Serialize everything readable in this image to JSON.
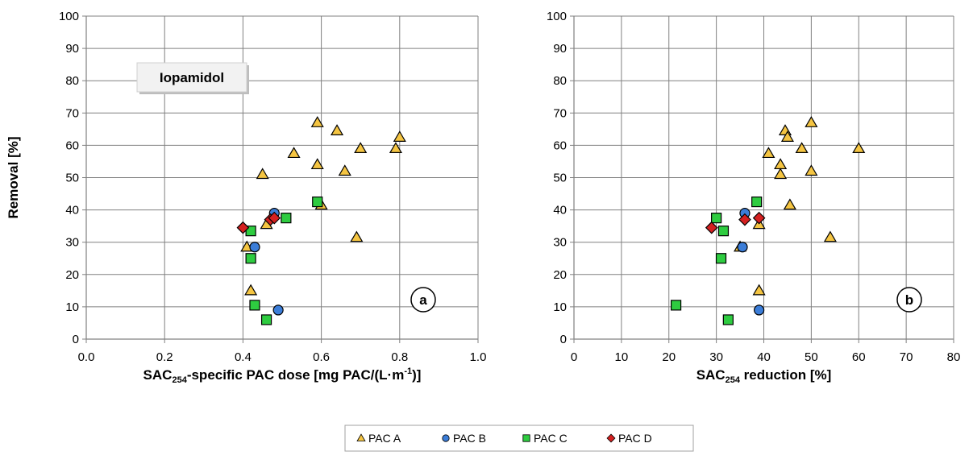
{
  "chart_data": [
    {
      "type": "scatter",
      "panel_label": "a",
      "annotation": "Iopamidol",
      "ylabel": "Removal [%]",
      "xlabel_parts": [
        "SAC",
        "254",
        "-specific PAC dose [mg PAC/(L·m",
        "-1",
        ")]"
      ],
      "xlim": [
        0,
        1.0
      ],
      "ylim": [
        0,
        100
      ],
      "xticks": [
        "0.0",
        "0.2",
        "0.4",
        "0.6",
        "0.8",
        "1.0"
      ],
      "xtick_values": [
        0,
        0.2,
        0.4,
        0.6,
        0.8,
        1.0
      ],
      "yticks": [
        "0",
        "10",
        "20",
        "30",
        "40",
        "50",
        "60",
        "70",
        "80",
        "90",
        "100"
      ],
      "ytick_values": [
        0,
        10,
        20,
        30,
        40,
        50,
        60,
        70,
        80,
        90,
        100
      ],
      "grid": true,
      "series": [
        {
          "name": "PAC A",
          "x": [
            0.59,
            0.64,
            0.7,
            0.79,
            0.8,
            0.53,
            0.59,
            0.66,
            0.45,
            0.6,
            0.46,
            0.41,
            0.69,
            0.42
          ],
          "y": [
            67,
            64.5,
            59,
            59,
            62.5,
            57.5,
            54,
            52,
            51,
            41.5,
            35.5,
            28.5,
            31.5,
            15
          ]
        },
        {
          "name": "PAC B",
          "x": [
            0.48,
            0.43,
            0.49
          ],
          "y": [
            39,
            28.5,
            9
          ]
        },
        {
          "name": "PAC C",
          "x": [
            0.59,
            0.51,
            0.42,
            0.42,
            0.43,
            0.46
          ],
          "y": [
            42.5,
            37.5,
            33.5,
            25,
            10.5,
            6
          ]
        },
        {
          "name": "PAC D",
          "x": [
            0.4,
            0.47,
            0.48
          ],
          "y": [
            34.5,
            37,
            37.5
          ]
        }
      ]
    },
    {
      "type": "scatter",
      "panel_label": "b",
      "ylabel": "",
      "xlabel_parts": [
        "SAC",
        "254",
        " reduction [%]"
      ],
      "xlim": [
        0,
        80
      ],
      "ylim": [
        0,
        100
      ],
      "xticks": [
        "0",
        "10",
        "20",
        "30",
        "40",
        "50",
        "60",
        "70",
        "80"
      ],
      "xtick_values": [
        0,
        10,
        20,
        30,
        40,
        50,
        60,
        70,
        80
      ],
      "yticks": [
        "0",
        "10",
        "20",
        "30",
        "40",
        "50",
        "60",
        "70",
        "80",
        "90",
        "100"
      ],
      "ytick_values": [
        0,
        10,
        20,
        30,
        40,
        50,
        60,
        70,
        80,
        90,
        100
      ],
      "grid": true,
      "series": [
        {
          "name": "PAC A",
          "x": [
            50,
            44.5,
            45,
            41,
            48,
            60,
            43.5,
            43.5,
            50,
            45.5,
            39,
            35,
            54,
            39
          ],
          "y": [
            67,
            64.5,
            62.5,
            57.5,
            59,
            59,
            54,
            51,
            52,
            41.5,
            35.5,
            28.5,
            31.5,
            15
          ]
        },
        {
          "name": "PAC B",
          "x": [
            36,
            35.5,
            39
          ],
          "y": [
            39,
            28.5,
            9
          ]
        },
        {
          "name": "PAC C",
          "x": [
            38.5,
            30,
            31.5,
            31,
            21.5,
            32.5
          ],
          "y": [
            42.5,
            37.5,
            33.5,
            25,
            10.5,
            6
          ]
        },
        {
          "name": "PAC D",
          "x": [
            29,
            36,
            39
          ],
          "y": [
            34.5,
            37,
            37.5
          ]
        }
      ]
    }
  ],
  "legend": {
    "placement": "bottom-center",
    "entries": [
      {
        "name": "PAC A",
        "marker": "triangle",
        "color": "#f5c542"
      },
      {
        "name": "PAC B",
        "marker": "circle",
        "color": "#3b7dd8"
      },
      {
        "name": "PAC C",
        "marker": "square",
        "color": "#2ecc40"
      },
      {
        "name": "PAC D",
        "marker": "diamond",
        "color": "#d42020"
      }
    ]
  },
  "colors": {
    "grid": "#808080",
    "axis": "#808080",
    "marker_edge": "#000000"
  }
}
